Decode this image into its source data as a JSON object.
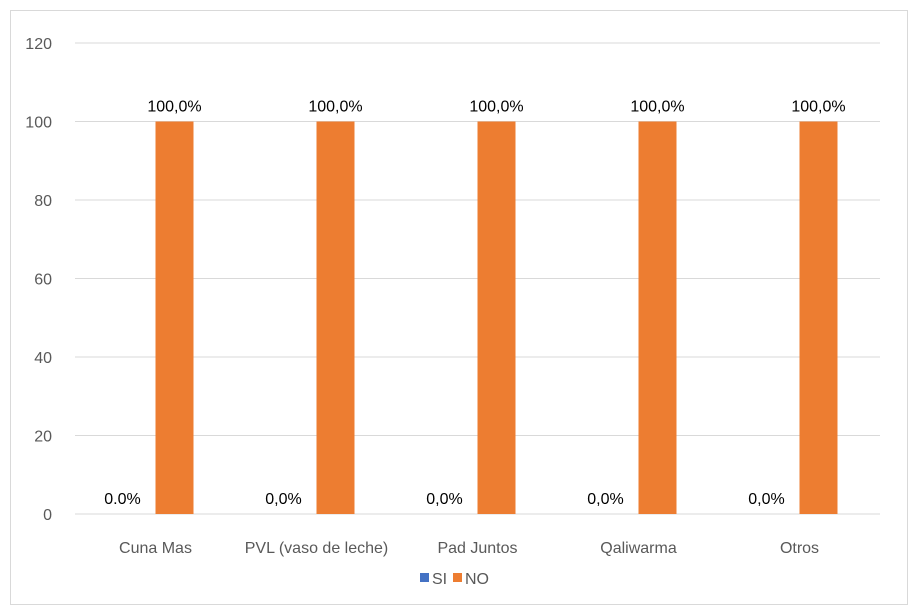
{
  "chart_data": {
    "type": "bar",
    "categories": [
      "Cuna Mas",
      "PVL (vaso de leche)",
      "Pad Juntos",
      "Qaliwarma",
      "Otros"
    ],
    "series": [
      {
        "name": "SI",
        "values": [
          0,
          0,
          0,
          0,
          0
        ],
        "labels": [
          "0.0%",
          "0,0%",
          "0,0%",
          "0,0%",
          "0,0%"
        ],
        "color": "#4472c4"
      },
      {
        "name": "NO",
        "values": [
          100,
          100,
          100,
          100,
          100
        ],
        "labels": [
          "100,0%",
          "100,0%",
          "100,0%",
          "100,0%",
          "100,0%"
        ],
        "color": "#ed7d31"
      }
    ],
    "yticks": [
      0,
      20,
      40,
      60,
      80,
      100,
      120
    ],
    "ylim": [
      0,
      120
    ],
    "grid": true,
    "legend": "bottom"
  }
}
